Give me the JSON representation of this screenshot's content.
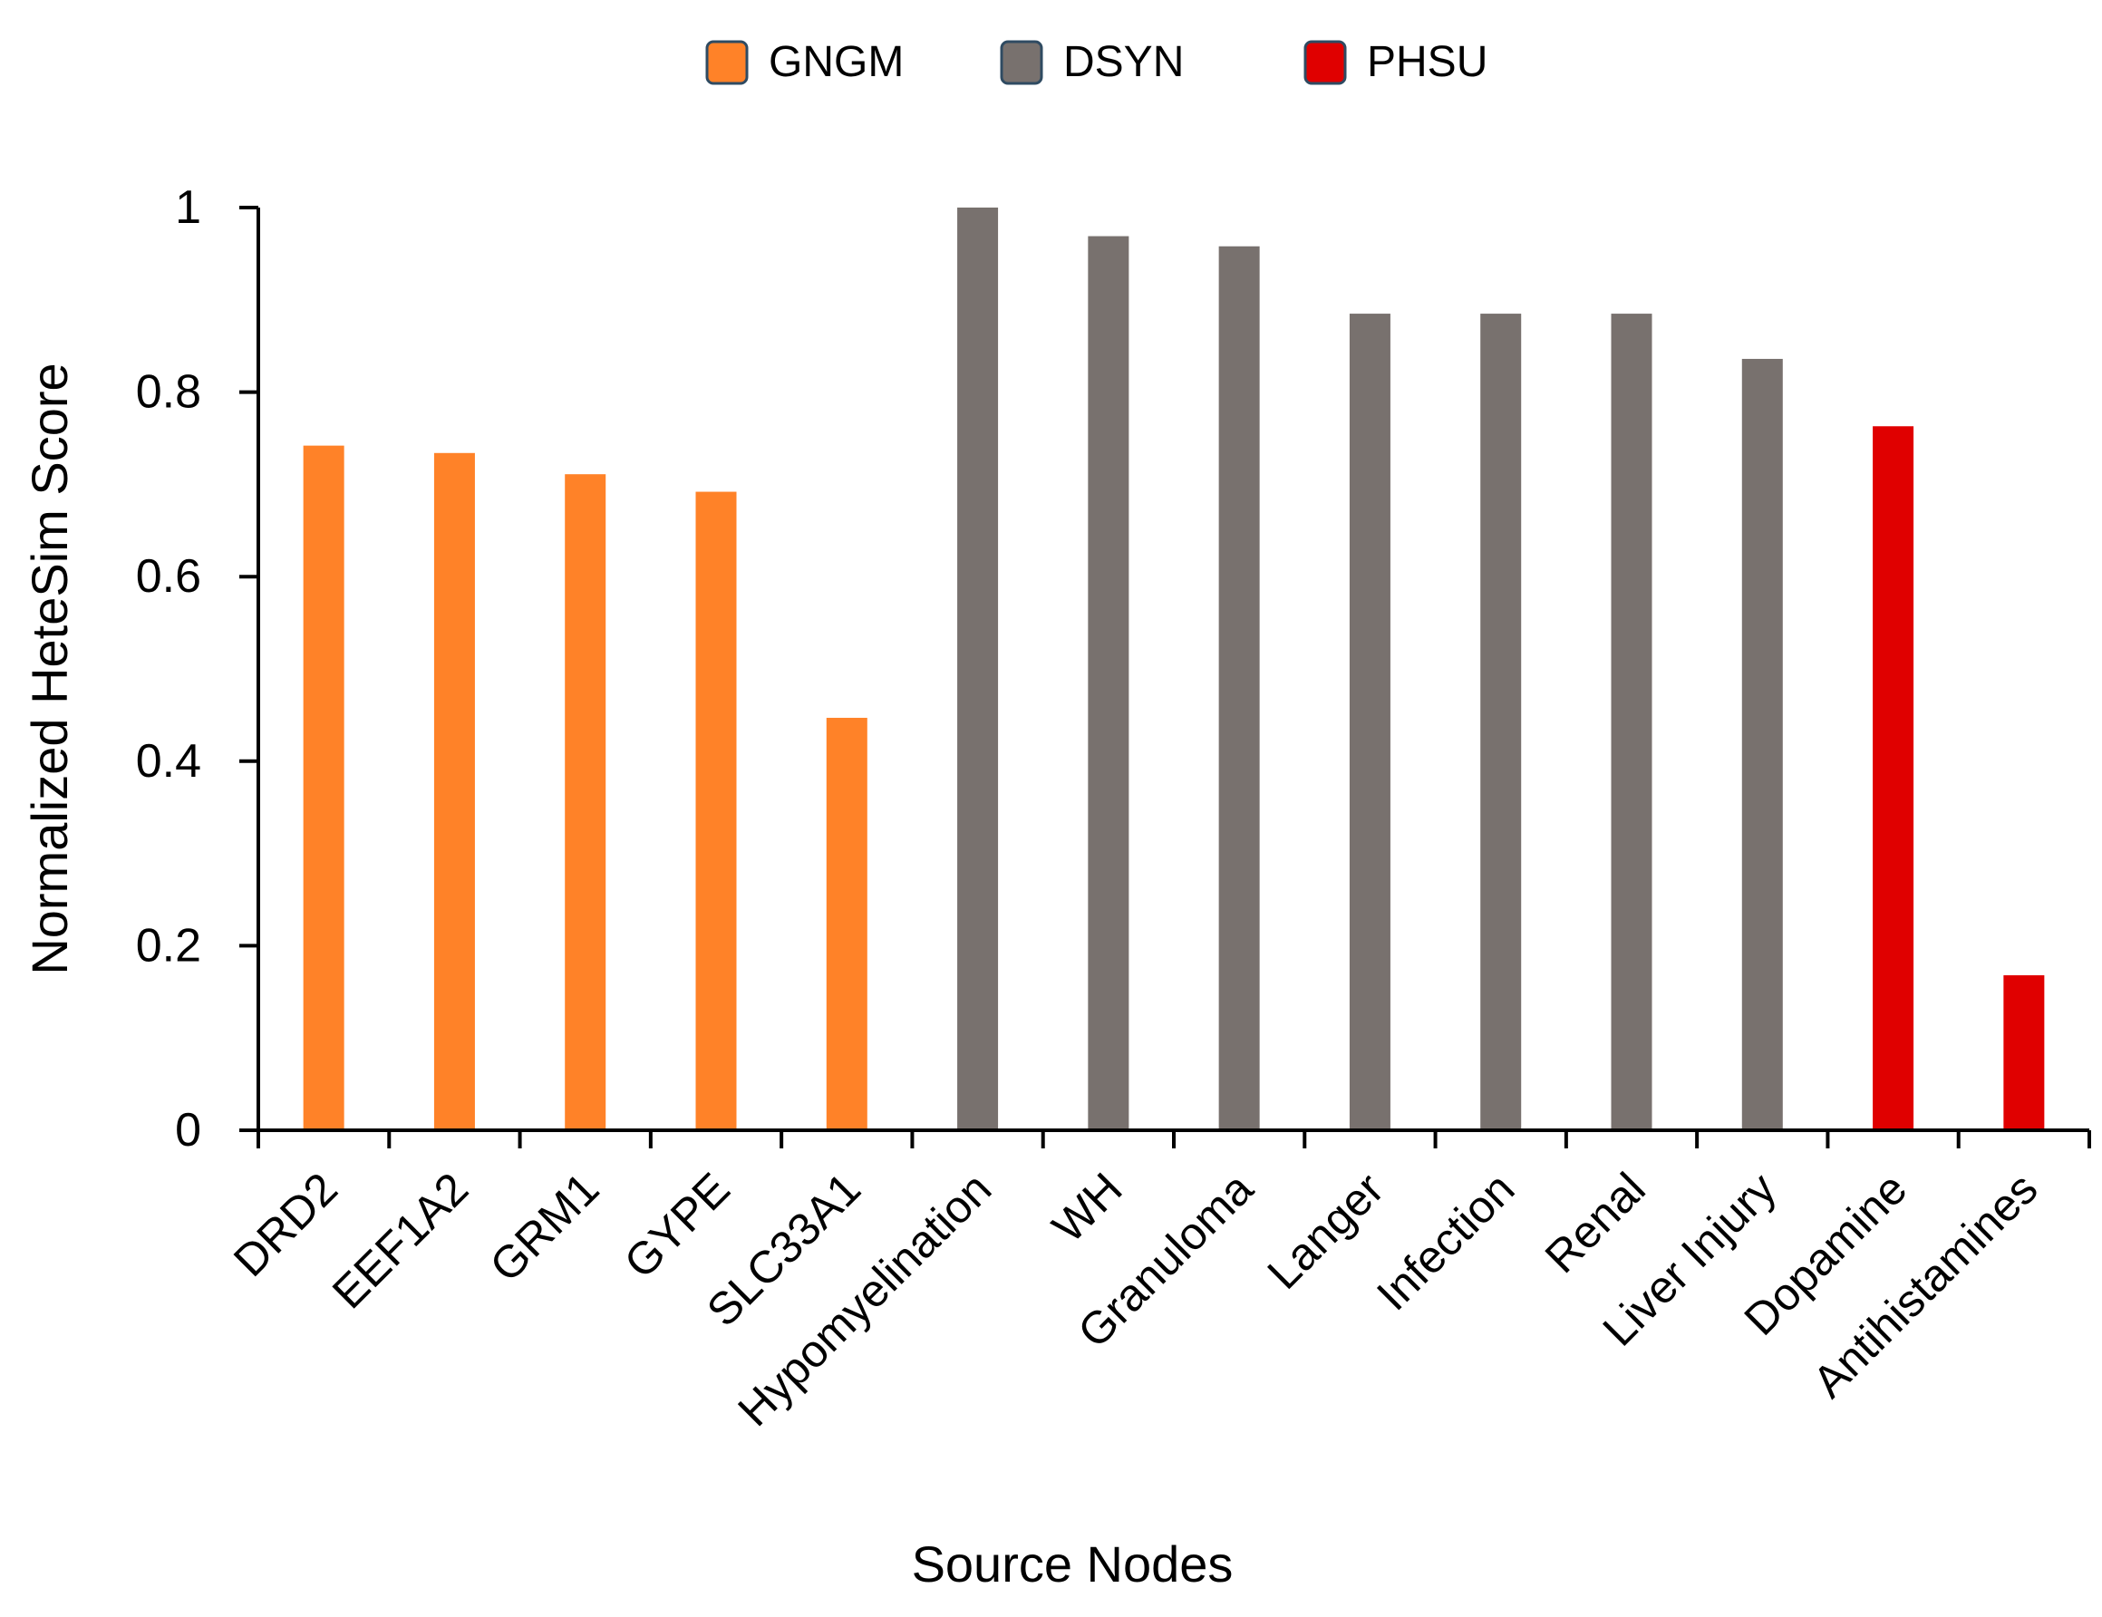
{
  "chart_data": {
    "type": "bar",
    "title": "",
    "xlabel": "Source Nodes",
    "ylabel": "Normalized HeteSim Score",
    "ylim": [
      0,
      1
    ],
    "yticks": [
      0,
      0.2,
      0.4,
      0.6,
      0.8,
      1
    ],
    "ytick_labels": [
      "0",
      "0.2",
      "0.4",
      "0.6",
      "0.8",
      "1"
    ],
    "grid": false,
    "legend_position": "top-center",
    "categories": [
      "DRD2",
      "EEF1A2",
      "GRM1",
      "GYPE",
      "SLC33A1",
      "Hypomyelination",
      "WH",
      "Granuloma",
      "Langer",
      "Infection",
      "Renal",
      "Liver Injury",
      "Dopamine",
      "Antihistamines"
    ],
    "values": [
      0.742,
      0.734,
      0.711,
      0.692,
      0.447,
      1.0,
      0.969,
      0.958,
      0.885,
      0.885,
      0.885,
      0.836,
      0.763,
      0.168
    ],
    "groups": [
      "GNGM",
      "GNGM",
      "GNGM",
      "GNGM",
      "GNGM",
      "DSYN",
      "DSYN",
      "DSYN",
      "DSYN",
      "DSYN",
      "DSYN",
      "DSYN",
      "PHSU",
      "PHSU"
    ],
    "legend": [
      {
        "name": "GNGM",
        "color": "#FF8228"
      },
      {
        "name": "DSYN",
        "color": "#78716E"
      },
      {
        "name": "PHSU",
        "color": "#E00000"
      }
    ]
  }
}
